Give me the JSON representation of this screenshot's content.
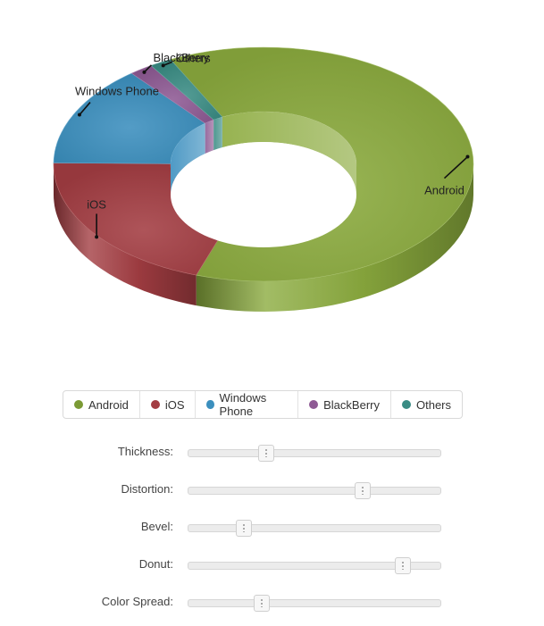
{
  "chart_data": {
    "type": "pie",
    "variant": "3d-donut",
    "title": "",
    "categories": [
      "Android",
      "iOS",
      "Windows Phone",
      "BlackBerry",
      "Others"
    ],
    "values": [
      62.5,
      20.0,
      14.0,
      1.8,
      1.7
    ],
    "unit": "%",
    "colors": [
      "#8bab3e",
      "#a33d42",
      "#3b8fbe",
      "#8e5a94",
      "#3a8c84"
    ],
    "legend_placement": "bottom"
  },
  "legend": {
    "items": [
      {
        "label": "Android",
        "color": "#7b9a35"
      },
      {
        "label": "iOS",
        "color": "#a33d42"
      },
      {
        "label": "Windows Phone",
        "color": "#3b8fbe"
      },
      {
        "label": "BlackBerry",
        "color": "#8e5a94"
      },
      {
        "label": "Others",
        "color": "#3a8c84"
      }
    ]
  },
  "controls": {
    "sliders": [
      {
        "label": "Thickness:",
        "value": 0.31
      },
      {
        "label": "Distortion:",
        "value": 0.69
      },
      {
        "label": "Bevel:",
        "value": 0.22
      },
      {
        "label": "Donut:",
        "value": 0.85
      },
      {
        "label": "Color Spread:",
        "value": 0.29
      }
    ]
  }
}
